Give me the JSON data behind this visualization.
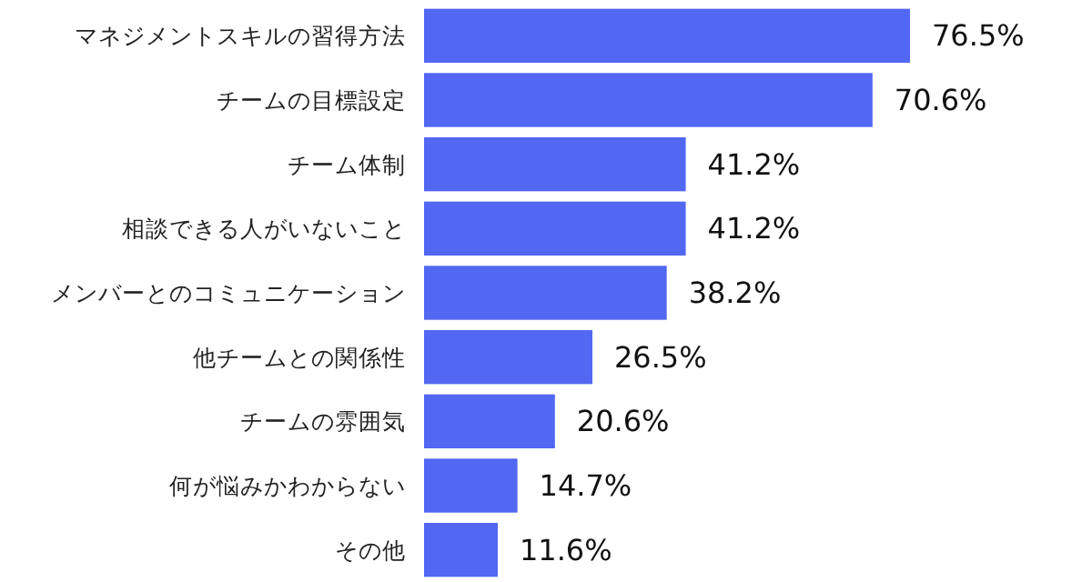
{
  "chart_data": {
    "type": "bar",
    "orientation": "horizontal",
    "categories": [
      "マネジメントスキルの習得方法",
      "チームの目標設定",
      "チーム体制",
      "相談できる人がいないこと",
      "メンバーとのコミュニケーション",
      "他チームとの関係性",
      "チームの雰囲気",
      "何が悩みかわからない",
      "その他"
    ],
    "values": [
      76.5,
      70.6,
      41.2,
      41.2,
      38.2,
      26.5,
      20.6,
      14.7,
      11.6
    ],
    "value_labels": [
      "76.5%",
      "70.6%",
      "41.2%",
      "41.2%",
      "38.2%",
      "26.5%",
      "20.6%",
      "14.7%",
      "11.6%"
    ],
    "color": "#5267f2"
  }
}
